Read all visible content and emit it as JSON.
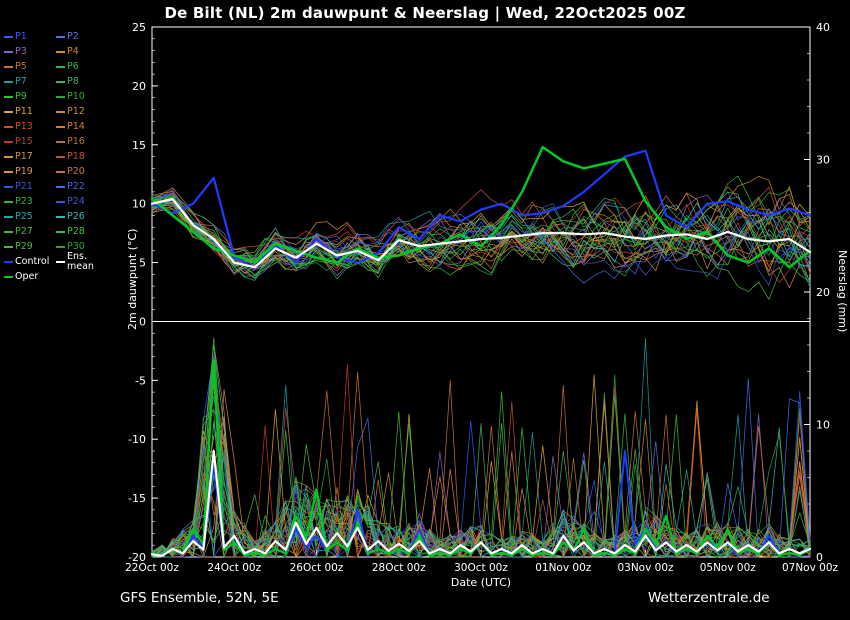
{
  "title": "De Bilt  (NL)  2m dauwpunt & Neerslag | Wed, 22Oct2025 00Z",
  "footer": {
    "model": "GFS Ensemble, 52N, 5E",
    "site": "Wetterzentrale.de"
  },
  "axes": {
    "left_label": "2m dauwpunt (°C)",
    "right_label": "Neerslag (mm)",
    "x_label": "Date (UTC)",
    "left_ticks": [
      25,
      20,
      15,
      10,
      5,
      0,
      -5,
      -10,
      -15,
      -20
    ],
    "right_ticks": [
      40,
      30,
      20,
      10,
      0
    ],
    "x_tick_labels": [
      "22Oct 00z",
      "24Oct 00z",
      "26Oct 00z",
      "28Oct 00z",
      "30Oct 00z",
      "01Nov 00z",
      "03Nov 00z",
      "05Nov 00z",
      "07Nov 00z"
    ],
    "left_range": [
      -20,
      25
    ],
    "right_range": [
      0,
      40
    ],
    "x_range_hours": [
      0,
      384
    ]
  },
  "legend": {
    "members": [
      {
        "label": "P1",
        "color": "#2e5bff"
      },
      {
        "label": "P2",
        "color": "#5b6ee0"
      },
      {
        "label": "P3",
        "color": "#8a5fc8"
      },
      {
        "label": "P4",
        "color": "#d2883a"
      },
      {
        "label": "P5",
        "color": "#c8742a"
      },
      {
        "label": "P6",
        "color": "#2fb44a"
      },
      {
        "label": "P7",
        "color": "#1fa0a0"
      },
      {
        "label": "P8",
        "color": "#3cb463"
      },
      {
        "label": "P9",
        "color": "#35c035"
      },
      {
        "label": "P10",
        "color": "#28a838"
      },
      {
        "label": "P11",
        "color": "#d8a82a"
      },
      {
        "label": "P12",
        "color": "#c88a32"
      },
      {
        "label": "P13",
        "color": "#d84a22"
      },
      {
        "label": "P14",
        "color": "#d87c36"
      },
      {
        "label": "P15",
        "color": "#c23a28"
      },
      {
        "label": "P16",
        "color": "#b4782e"
      },
      {
        "label": "P17",
        "color": "#d88a46"
      },
      {
        "label": "P18",
        "color": "#c2503a"
      },
      {
        "label": "P19",
        "color": "#dc9a32"
      },
      {
        "label": "P20",
        "color": "#c8763e"
      },
      {
        "label": "P21",
        "color": "#3454d8"
      },
      {
        "label": "P22",
        "color": "#4668ea"
      },
      {
        "label": "P23",
        "color": "#32b450"
      },
      {
        "label": "P24",
        "color": "#4257c8"
      },
      {
        "label": "P25",
        "color": "#22a8a8"
      },
      {
        "label": "P26",
        "color": "#30b8b8"
      },
      {
        "label": "P27",
        "color": "#46b434"
      },
      {
        "label": "P28",
        "color": "#30c046"
      },
      {
        "label": "P29",
        "color": "#52b446"
      },
      {
        "label": "P30",
        "color": "#2ea232"
      }
    ],
    "control": {
      "label": "Control",
      "color": "#1e3cff"
    },
    "ens_mean": {
      "label": "Ens. mean",
      "color": "#ffffff"
    },
    "oper": {
      "label": "Oper",
      "color": "#00c828"
    }
  },
  "chart_data": {
    "type": "line",
    "title": "De Bilt (NL) 2m dauwpunt & Neerslag, GFS Ensemble run Wed 22Oct2025 00Z",
    "xlabel": "Date (UTC)",
    "ylabel_left": "2m dauwpunt (°C)",
    "ylabel_right": "Neerslag (mm)",
    "ylim_left": [
      -20,
      25
    ],
    "ylim_right": [
      0,
      40
    ],
    "grid": false,
    "legend_position": "top-left",
    "x_hours": [
      0,
      12,
      24,
      36,
      48,
      60,
      72,
      84,
      96,
      108,
      120,
      132,
      144,
      156,
      168,
      180,
      192,
      204,
      216,
      228,
      240,
      252,
      264,
      276,
      288,
      300,
      312,
      324,
      336,
      348,
      360,
      372,
      384
    ],
    "dewpoint_c": {
      "ens_mean": [
        10.0,
        10.4,
        8.2,
        7.0,
        5.0,
        4.6,
        6.2,
        5.4,
        6.6,
        5.6,
        6.0,
        5.2,
        6.9,
        6.4,
        6.6,
        6.8,
        7.0,
        7.1,
        7.3,
        7.5,
        7.5,
        7.4,
        7.5,
        7.2,
        7.0,
        7.3,
        7.4,
        7.0,
        7.6,
        7.0,
        6.8,
        7.0,
        5.9
      ],
      "control": [
        10.0,
        9.2,
        10.0,
        12.2,
        5.5,
        4.5,
        6.5,
        5.0,
        7.0,
        5.5,
        5.0,
        5.8,
        8.0,
        7.0,
        9.0,
        8.5,
        9.5,
        10.0,
        9.0,
        9.2,
        9.8,
        11.0,
        12.5,
        14.0,
        14.5,
        9.0,
        8.0,
        10.0,
        10.2,
        9.5,
        9.0,
        9.6,
        9.0
      ],
      "oper": [
        10.4,
        9.0,
        7.6,
        6.2,
        5.6,
        5.0,
        6.6,
        6.0,
        5.4,
        5.0,
        6.2,
        5.4,
        5.6,
        6.2,
        6.6,
        7.4,
        6.4,
        8.2,
        11.0,
        14.8,
        13.6,
        13.0,
        13.4,
        13.8,
        10.2,
        8.0,
        7.0,
        7.6,
        5.6,
        5.0,
        6.2,
        4.6,
        6.0
      ]
    },
    "precip_mm": {
      "ens_mean": [
        0.2,
        0.6,
        1.2,
        8.0,
        1.6,
        0.6,
        1.2,
        2.6,
        2.2,
        1.8,
        2.2,
        1.2,
        1.0,
        1.2,
        0.6,
        0.9,
        1.1,
        0.6,
        0.9,
        0.6,
        1.6,
        1.1,
        0.6,
        0.9,
        1.6,
        1.1,
        0.9,
        1.1,
        1.1,
        0.9,
        1.1,
        0.6,
        0.6
      ],
      "control": [
        0.2,
        0.6,
        1.6,
        7.0,
        1.1,
        0.6,
        0.6,
        2.1,
        1.6,
        1.1,
        3.6,
        0.6,
        0.6,
        2.1,
        0.6,
        0.6,
        1.1,
        0.6,
        0.6,
        0.6,
        1.6,
        1.1,
        0.6,
        8.0,
        2.1,
        1.1,
        0.6,
        1.6,
        1.1,
        0.6,
        1.6,
        0.6,
        0.6
      ],
      "oper": [
        0.3,
        0.6,
        2.1,
        14.8,
        1.1,
        0.3,
        0.6,
        3.1,
        5.1,
        1.1,
        2.6,
        0.6,
        0.6,
        1.6,
        0.3,
        0.6,
        1.1,
        0.3,
        0.6,
        0.3,
        1.1,
        2.1,
        0.3,
        0.6,
        2.1,
        3.1,
        0.6,
        1.6,
        2.1,
        0.6,
        1.1,
        0.3,
        0.6
      ]
    },
    "member_spread_c": {
      "start": 0.9,
      "end": 4.5
    },
    "notes": "30 perturbed ensemble members (P1-P30) drawn as thin colored spaghetti around the ensemble mean; precipitation plotted on right axis as spikes near the bottom."
  }
}
